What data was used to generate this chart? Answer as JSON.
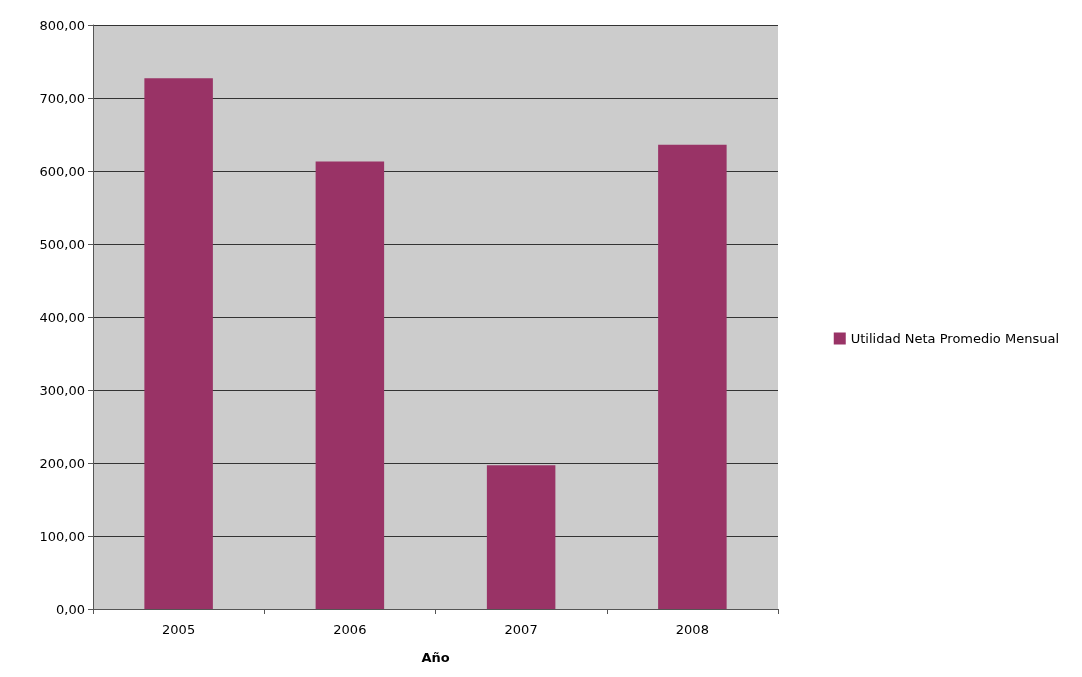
{
  "chart_data": {
    "type": "bar",
    "xlabel": "Año",
    "categories": [
      "2005",
      "2006",
      "2007",
      "2008"
    ],
    "series": [
      {
        "name": "Utilidad Neta Promedio Mensual",
        "color": "#993366",
        "values": [
          727,
          613,
          197,
          636
        ]
      }
    ],
    "ylim": [
      0,
      800
    ],
    "yticks": [
      {
        "value": 0,
        "label": "0,00"
      },
      {
        "value": 100,
        "label": "100,00"
      },
      {
        "value": 200,
        "label": "200,00"
      },
      {
        "value": 300,
        "label": "300,00"
      },
      {
        "value": 400,
        "label": "400,00"
      },
      {
        "value": 500,
        "label": "500,00"
      },
      {
        "value": 600,
        "label": "600,00"
      },
      {
        "value": 700,
        "label": "700,00"
      },
      {
        "value": 800,
        "label": "800,00"
      }
    ],
    "grid": "y",
    "legend": "right"
  }
}
